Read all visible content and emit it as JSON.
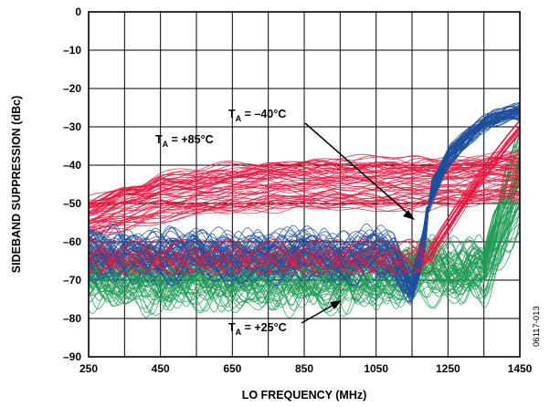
{
  "chart_data": {
    "type": "line",
    "xlabel": "LO FREQUENCY (MHz)",
    "ylabel": "SIDEBAND SUPPRESSION (dBc)",
    "xlim": [
      250,
      1450
    ],
    "ylim": [
      -90,
      0
    ],
    "x_ticks": [
      "250",
      "450",
      "650",
      "850",
      "1050",
      "1250",
      "1450"
    ],
    "y_ticks": [
      "0",
      "–10",
      "–20",
      "–30",
      "–40",
      "–50",
      "–60",
      "–70",
      "–80",
      "–90"
    ],
    "grid": true,
    "figure_id": "06117-013",
    "annotations": [
      {
        "series": "T_A = –40°C",
        "prefix": "T",
        "sub": "A",
        "suffix": " = –40°C"
      },
      {
        "series": "T_A = +85°C",
        "prefix": "T",
        "sub": "A",
        "suffix": " = +85°C"
      },
      {
        "series": "T_A = +25°C",
        "prefix": "T",
        "sub": "A",
        "suffix": " = +25°C"
      }
    ],
    "series": [
      {
        "name": "T_A = +85°C",
        "color": "#e8173f",
        "x": [
          250,
          300,
          350,
          400,
          450,
          550,
          650,
          750,
          850,
          950,
          1050,
          1150,
          1250,
          1350,
          1450
        ],
        "envelope_top": [
          -49,
          -47,
          -45,
          -44,
          -42,
          -41,
          -40,
          -39,
          -38,
          -38,
          -38,
          -38,
          -38,
          -37,
          -36
        ],
        "envelope_bottom": [
          -58,
          -57,
          -56,
          -55,
          -54,
          -53,
          -52,
          -51,
          -51,
          -51,
          -51,
          -51,
          -50,
          -50,
          -49
        ]
      },
      {
        "name": "T_A = –40°C",
        "color": "#1d4f9c",
        "x": [
          250,
          350,
          450,
          550,
          650,
          750,
          850,
          950,
          1050,
          1100,
          1150,
          1180,
          1200,
          1250,
          1300,
          1350,
          1400,
          1450
        ],
        "typical": [
          -63,
          -63,
          -64,
          -63,
          -64,
          -64,
          -63,
          -64,
          -63,
          -64,
          -72,
          -62,
          -48,
          -38,
          -33,
          -29,
          -27,
          -26
        ],
        "spread": [
          8,
          8,
          8,
          8,
          8,
          8,
          8,
          8,
          8,
          8,
          4,
          6,
          8,
          7,
          6,
          5,
          4,
          4
        ]
      },
      {
        "name": "T_A = +25°C",
        "color": "#1f9a54",
        "x": [
          250,
          350,
          450,
          550,
          650,
          750,
          850,
          950,
          1050,
          1150,
          1250,
          1350,
          1450
        ],
        "typical": [
          -69,
          -70,
          -70,
          -70,
          -70,
          -70,
          -70,
          -70,
          -70,
          -68,
          -68,
          -68,
          -45
        ],
        "spread": [
          10,
          10,
          10,
          10,
          10,
          10,
          10,
          10,
          10,
          10,
          10,
          10,
          25
        ]
      }
    ]
  }
}
